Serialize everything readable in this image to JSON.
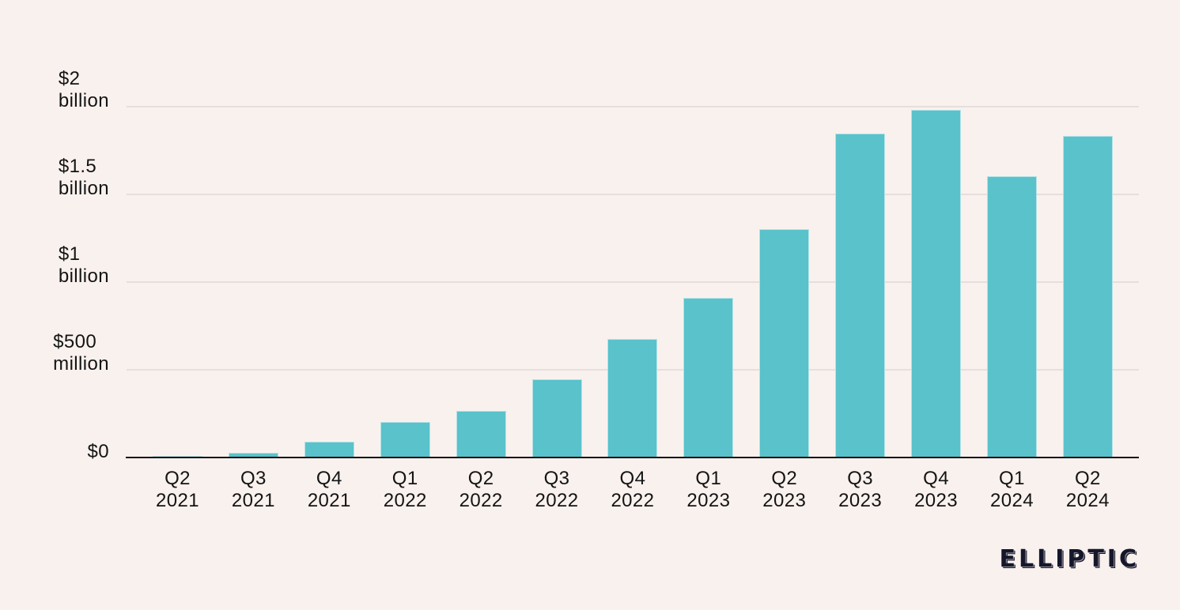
{
  "page": {
    "background_color": "#f9f1ee",
    "text_color": "#141414"
  },
  "chart_data": {
    "type": "bar",
    "title": "",
    "xlabel": "",
    "ylabel": "",
    "value_unit": "USD millions",
    "categories": [
      "Q2 2021",
      "Q3 2021",
      "Q4 2021",
      "Q1 2022",
      "Q2 2022",
      "Q3 2022",
      "Q4 2022",
      "Q1 2023",
      "Q2 2023",
      "Q3 2023",
      "Q4 2023",
      "Q1 2024",
      "Q2 2024"
    ],
    "values": [
      8,
      25,
      90,
      205,
      265,
      445,
      675,
      910,
      1300,
      1845,
      1980,
      1605,
      1835
    ],
    "ylim": [
      0,
      2000
    ],
    "grid": true,
    "legend_position": "none",
    "bar_color": "#59c2cb",
    "gridline_color": "#e5dfdd",
    "axis_line_color": "#141414",
    "y_ticks": [
      {
        "value": 2000,
        "lines": [
          "$2",
          "billion"
        ]
      },
      {
        "value": 1500,
        "lines": [
          "$1.5",
          "billion"
        ]
      },
      {
        "value": 1000,
        "lines": [
          "$1",
          "billion"
        ]
      },
      {
        "value": 500,
        "lines": [
          "$500",
          "million"
        ]
      },
      {
        "value": 0,
        "lines": [
          "$0"
        ]
      }
    ]
  },
  "branding": {
    "logo_text": "ELLIPTIC"
  }
}
